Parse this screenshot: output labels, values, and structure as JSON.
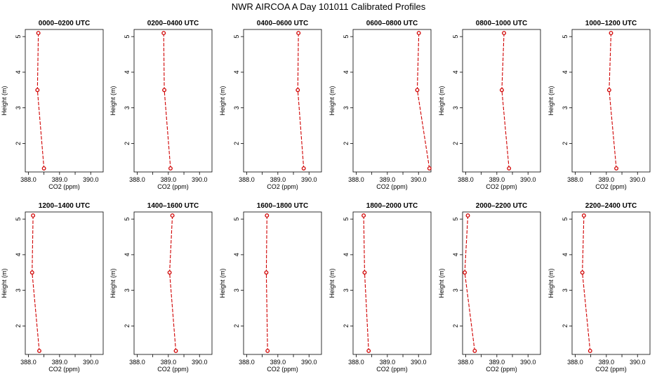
{
  "figure_title": "NWR AIRCOA A  Day 101011  Calibrated Profiles",
  "chart_data": {
    "type": "line",
    "title": "NWR AIRCOA A  Day 101011  Calibrated Profiles",
    "xlabel": "CO2 (ppm)",
    "ylabel": "Height (m)",
    "xlim": [
      387.9,
      390.4
    ],
    "ylim": [
      1.2,
      5.2
    ],
    "xticks": [
      388.0,
      388.5,
      389.0,
      389.5,
      390.0
    ],
    "xtick_labels": [
      "388.0",
      "",
      "389.0",
      "",
      "390.0"
    ],
    "yticks": [
      2,
      3,
      4,
      5
    ],
    "ytick_labels": [
      "2",
      "3",
      "4",
      "5"
    ],
    "heights": [
      5.1,
      3.5,
      1.3
    ],
    "colors": {
      "series": "#d00000",
      "axes": "#000000"
    },
    "panels": [
      {
        "title": "0000–0200 UTC",
        "co2": [
          388.32,
          388.29,
          388.5
        ]
      },
      {
        "title": "0200–0400 UTC",
        "co2": [
          388.85,
          388.87,
          389.07
        ]
      },
      {
        "title": "0400–0600 UTC",
        "co2": [
          389.66,
          389.64,
          389.83
        ]
      },
      {
        "title": "0600–0800 UTC",
        "co2": [
          390.01,
          389.96,
          390.35
        ]
      },
      {
        "title": "0800–1000 UTC",
        "co2": [
          389.23,
          389.16,
          389.39
        ]
      },
      {
        "title": "1000–1200 UTC",
        "co2": [
          389.15,
          389.09,
          389.32
        ]
      },
      {
        "title": "1200–1400 UTC",
        "co2": [
          388.15,
          388.12,
          388.35
        ]
      },
      {
        "title": "1400–1600 UTC",
        "co2": [
          389.13,
          389.04,
          389.24
        ]
      },
      {
        "title": "1600–1800 UTC",
        "co2": [
          388.65,
          388.63,
          388.67
        ]
      },
      {
        "title": "1800–2000 UTC",
        "co2": [
          388.24,
          388.27,
          388.4
        ]
      },
      {
        "title": "2000–2200 UTC",
        "co2": [
          388.07,
          387.97,
          388.29
        ]
      },
      {
        "title": "2200–2400 UTC",
        "co2": [
          388.28,
          388.23,
          388.48
        ]
      }
    ]
  }
}
